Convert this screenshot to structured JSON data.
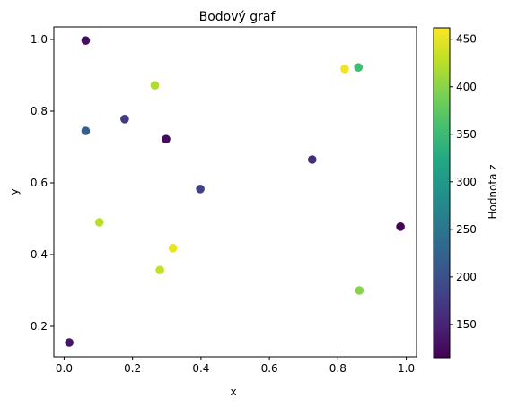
{
  "chart_data": {
    "type": "scatter",
    "title": "Bodový graf",
    "xlabel": "x",
    "ylabel": "y",
    "xlim": [
      -0.03,
      1.03
    ],
    "ylim": [
      0.115,
      1.035
    ],
    "xticks": [
      0.0,
      0.2,
      0.4,
      0.6,
      0.8,
      1.0
    ],
    "xtick_labels": [
      "0.0",
      "0.2",
      "0.4",
      "0.6",
      "0.8",
      "1.0"
    ],
    "yticks": [
      0.2,
      0.4,
      0.6,
      0.8,
      1.0
    ],
    "ytick_labels": [
      "0.2",
      "0.4",
      "0.6",
      "0.8",
      "1.0"
    ],
    "grid": false,
    "colormap": "viridis",
    "colorbar": {
      "label": "Hodnota z",
      "range": [
        115,
        462
      ],
      "ticks": [
        150,
        200,
        250,
        300,
        350,
        400,
        450
      ],
      "tick_labels": [
        "150",
        "200",
        "250",
        "300",
        "350",
        "400",
        "450"
      ]
    },
    "points": [
      {
        "x": 0.063,
        "y": 0.997,
        "z": 130
      },
      {
        "x": 0.265,
        "y": 0.872,
        "z": 420
      },
      {
        "x": 0.82,
        "y": 0.918,
        "z": 455
      },
      {
        "x": 0.86,
        "y": 0.922,
        "z": 355
      },
      {
        "x": 0.177,
        "y": 0.778,
        "z": 175
      },
      {
        "x": 0.063,
        "y": 0.745,
        "z": 220
      },
      {
        "x": 0.298,
        "y": 0.722,
        "z": 125
      },
      {
        "x": 0.725,
        "y": 0.665,
        "z": 160
      },
      {
        "x": 0.398,
        "y": 0.583,
        "z": 180
      },
      {
        "x": 0.103,
        "y": 0.49,
        "z": 425
      },
      {
        "x": 0.983,
        "y": 0.478,
        "z": 117
      },
      {
        "x": 0.318,
        "y": 0.418,
        "z": 450
      },
      {
        "x": 0.28,
        "y": 0.357,
        "z": 430
      },
      {
        "x": 0.863,
        "y": 0.3,
        "z": 400
      },
      {
        "x": 0.015,
        "y": 0.155,
        "z": 135
      }
    ]
  }
}
